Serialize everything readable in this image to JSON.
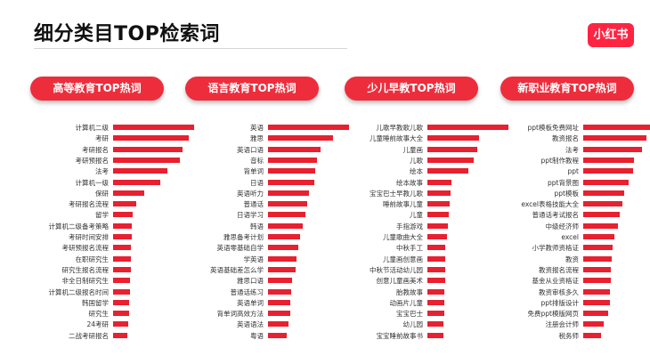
{
  "page": {
    "title": "细分类目TOP检索词",
    "logo_text": "小红书",
    "accent_color": "#e8202f"
  },
  "chart_data": [
    {
      "type": "bar",
      "orientation": "horizontal",
      "title": "高等教育TOP热词",
      "categories": [
        "计算机二级",
        "考研",
        "考研报名",
        "考研预报名",
        "法考",
        "计算机一级",
        "保研",
        "考研报名流程",
        "留学",
        "计算机二级备考策略",
        "考研时间安排",
        "考研预报名流程",
        "在职研究生",
        "研究生报名流程",
        "非全日制研究生",
        "计算机二级报名时间",
        "韩国留学",
        "研究生",
        "24考研",
        "二战考研报名"
      ],
      "values": [
        100,
        93,
        86,
        82,
        67,
        58,
        39,
        29,
        24,
        23,
        23,
        22,
        22,
        22,
        21,
        21,
        20,
        20,
        19,
        18
      ]
    },
    {
      "type": "bar",
      "orientation": "horizontal",
      "title": "语言教育TOP热词",
      "categories": [
        "英语",
        "雅思",
        "英语口语",
        "音标",
        "背单词",
        "日语",
        "英语听力",
        "普通话",
        "日语学习",
        "韩语",
        "雅思备考计划",
        "英语零基础自学",
        "学英语",
        "英语基础差怎么学",
        "雅思口语",
        "普通话练习",
        "英语单词",
        "背单词高效方法",
        "英语语法",
        "粤语"
      ],
      "values": [
        100,
        80,
        65,
        60,
        58,
        57,
        50,
        48,
        46,
        43,
        40,
        37,
        35,
        34,
        30,
        29,
        28,
        27,
        25,
        23
      ]
    },
    {
      "type": "bar",
      "orientation": "horizontal",
      "title": "少儿早教TOP热词",
      "categories": [
        "儿歌早教歌儿歌",
        "儿童睡前故事大全",
        "儿童画",
        "儿歌",
        "绘本",
        "绘本故事",
        "宝宝巴士早教儿歌",
        "睡前故事儿童",
        "儿童",
        "手指游戏",
        "儿童歌曲大全",
        "中秋手工",
        "儿童画创意画",
        "中秋节活动幼儿园",
        "创意儿童画美术",
        "胎教故事",
        "动画片儿童",
        "宝宝巴士",
        "幼儿园",
        "宝宝睡前故事书"
      ],
      "values": [
        100,
        64,
        61,
        57,
        51,
        30,
        29,
        28,
        26,
        25,
        24,
        22,
        22,
        22,
        22,
        21,
        21,
        21,
        20,
        20
      ]
    },
    {
      "type": "bar",
      "orientation": "horizontal",
      "title": "新职业教育TOP热词",
      "categories": [
        "ppt模板免费网址",
        "教资报名",
        "法考",
        "ppt制作教程",
        "ppt",
        "ppt背景图",
        "ppt模板",
        "excel表格技能大全",
        "普通话考试报名",
        "中级经济师",
        "excel",
        "小学教师资格证",
        "教资",
        "教资报名流程",
        "基金从业资格证",
        "教资审核多久",
        "ppt排版设计",
        "免费ppt模版网页",
        "注册会计师",
        "税务师"
      ],
      "values": [
        100,
        78,
        72,
        63,
        62,
        56,
        50,
        48,
        45,
        43,
        38,
        36,
        35,
        34,
        34,
        33,
        33,
        31,
        25,
        22
      ]
    }
  ]
}
